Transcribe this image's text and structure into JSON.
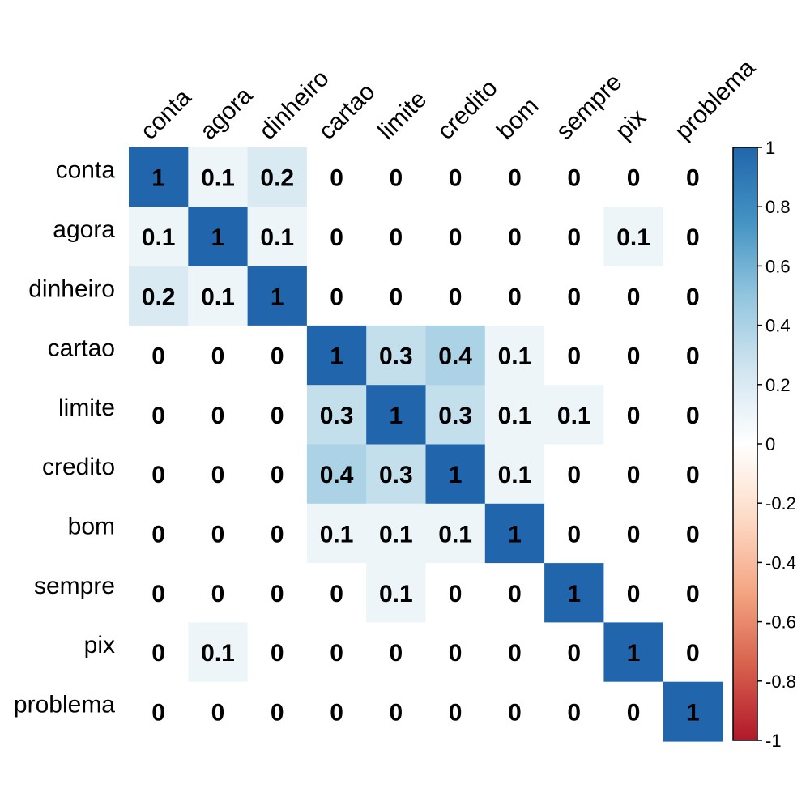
{
  "chart_data": {
    "type": "heatmap",
    "title": "",
    "variables": [
      "conta",
      "agora",
      "dinheiro",
      "cartao",
      "limite",
      "credito",
      "bom",
      "sempre",
      "pix",
      "problema"
    ],
    "matrix": [
      [
        1,
        0.1,
        0.2,
        0,
        0,
        0,
        0,
        0,
        0,
        0
      ],
      [
        0.1,
        1,
        0.1,
        0,
        0,
        0,
        0,
        0,
        0.1,
        0
      ],
      [
        0.2,
        0.1,
        1,
        0,
        0,
        0,
        0,
        0,
        0,
        0
      ],
      [
        0,
        0,
        0,
        1,
        0.3,
        0.4,
        0.1,
        0,
        0,
        0
      ],
      [
        0,
        0,
        0,
        0.3,
        1,
        0.3,
        0.1,
        0.1,
        0,
        0
      ],
      [
        0,
        0,
        0,
        0.4,
        0.3,
        1,
        0.1,
        0,
        0,
        0
      ],
      [
        0,
        0,
        0,
        0.1,
        0.1,
        0.1,
        1,
        0,
        0,
        0
      ],
      [
        0,
        0,
        0,
        0,
        0.1,
        0,
        0,
        1,
        0,
        0
      ],
      [
        0,
        0.1,
        0,
        0,
        0,
        0,
        0,
        0,
        1,
        0
      ],
      [
        0,
        0,
        0,
        0,
        0,
        0,
        0,
        0,
        0,
        1
      ]
    ],
    "colorbar": {
      "range": [
        -1,
        1
      ],
      "ticks": [
        1,
        0.8,
        0.6,
        0.4,
        0.2,
        0,
        -0.2,
        -0.4,
        -0.6,
        -0.8,
        -1
      ],
      "tick_labels": [
        "1",
        "0.8",
        "0.6",
        "0.4",
        "0.2",
        "0",
        "-0.2",
        "-0.4",
        "-0.6",
        "-0.8",
        "-1"
      ],
      "colors": [
        "#B2182B",
        "#D6604D",
        "#F4A582",
        "#FDDBC7",
        "#FFFFFF",
        "#D1E5F0",
        "#92C5DE",
        "#4393C3",
        "#2166AC"
      ],
      "position": "right"
    },
    "colors": {
      "low": "#B2182B",
      "mid": "#FFFFFF",
      "high": "#2166AC",
      "text": "#000000",
      "frame": "#000000"
    }
  }
}
